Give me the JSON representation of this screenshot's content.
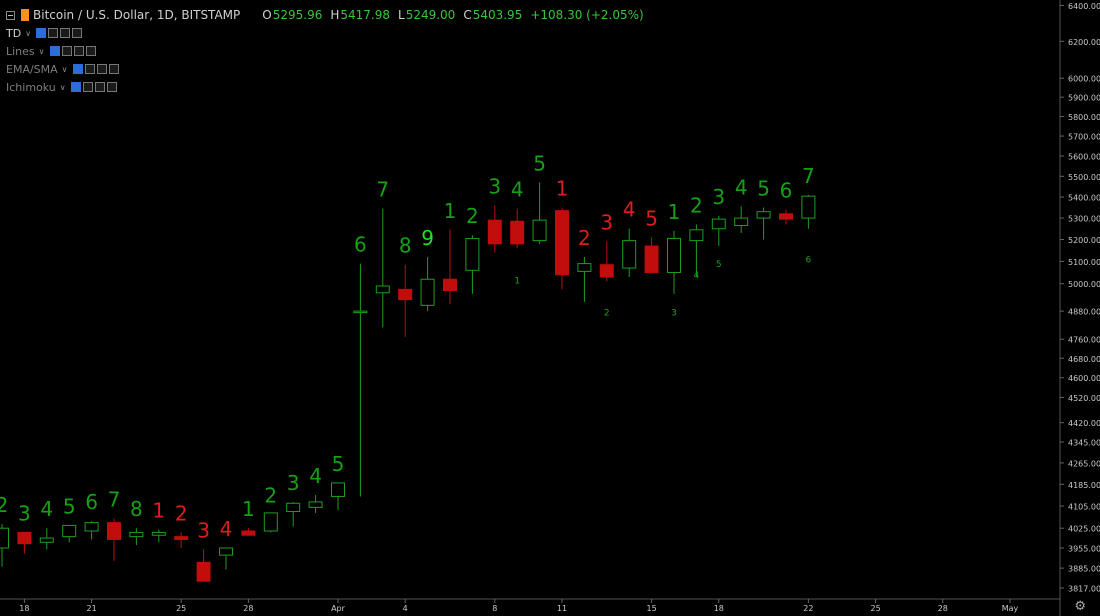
{
  "legend": {
    "symbol_title": "Bitcoin / U.S. Dollar, 1D, BITSTAMP",
    "open_label": "O",
    "open_value": "5295.96",
    "high_label": "H",
    "high_value": "5417.98",
    "low_label": "L",
    "low_value": "5249.00",
    "close_label": "C",
    "close_value": "5403.95",
    "change": "+108.30 (+2.05%)",
    "indicators": [
      {
        "label": "TD",
        "dim": false
      },
      {
        "label": "Lines",
        "dim": true
      },
      {
        "label": "EMA/SMA",
        "dim": true
      },
      {
        "label": "Ichimoku",
        "dim": true
      }
    ],
    "icons": [
      "collapse-icon",
      "bitcoin-icon",
      "eye-icon",
      "gear-icon",
      "source-icon",
      "close-icon",
      "chevron-down-icon"
    ]
  },
  "colors": {
    "background": "#000000",
    "up": "#1e9e1e",
    "down": "#c20d0d",
    "td_buy": "#16a016",
    "td_sell": "#e01c1c",
    "td_bright": "#22e022",
    "change_text": "#36c736"
  },
  "chart_data": {
    "type": "candlestick",
    "interval": "1D",
    "x": [
      "Mar 17",
      "Mar 18",
      "Mar 19",
      "Mar 20",
      "Mar 21",
      "Mar 22",
      "Mar 23",
      "Mar 24",
      "Mar 25",
      "Mar 26",
      "Mar 27",
      "Mar 28",
      "Mar 29",
      "Mar 30",
      "Mar 31",
      "Apr 1",
      "Apr 2",
      "Apr 3",
      "Apr 4",
      "Apr 5",
      "Apr 6",
      "Apr 7",
      "Apr 8",
      "Apr 9",
      "Apr 10",
      "Apr 11",
      "Apr 12",
      "Apr 13",
      "Apr 14",
      "Apr 15",
      "Apr 16",
      "Apr 17",
      "Apr 18",
      "Apr 19",
      "Apr 20",
      "Apr 21",
      "Apr 22"
    ],
    "open": [
      3955,
      4010,
      3975,
      3995,
      4015,
      4045,
      3995,
      4000,
      3995,
      3905,
      3930,
      4015,
      4015,
      4085,
      4100,
      4140,
      4880,
      4960,
      4975,
      4905,
      5020,
      5060,
      5290,
      5285,
      5195,
      5335,
      5055,
      5085,
      5070,
      5170,
      5050,
      5195,
      5250,
      5265,
      5300,
      5320,
      5300
    ],
    "high": [
      4040,
      4010,
      4025,
      4035,
      4050,
      4060,
      4025,
      4020,
      4010,
      3950,
      3955,
      4025,
      4075,
      4120,
      4145,
      4190,
      5090,
      5345,
      5085,
      5120,
      5245,
      5220,
      5360,
      5345,
      5470,
      5350,
      5120,
      5190,
      5250,
      5210,
      5240,
      5270,
      5310,
      5355,
      5350,
      5340,
      5410
    ],
    "low": [
      3890,
      3935,
      3950,
      3975,
      3985,
      3910,
      3965,
      3975,
      3955,
      3840,
      3880,
      4000,
      4010,
      4030,
      4080,
      4090,
      4140,
      4810,
      4770,
      4880,
      4910,
      4955,
      5140,
      5160,
      5180,
      4975,
      4920,
      5010,
      5030,
      5060,
      4955,
      5030,
      5170,
      5230,
      5200,
      5270,
      5250
    ],
    "close": [
      4025,
      3970,
      3990,
      4035,
      4045,
      3985,
      4010,
      4010,
      3985,
      3840,
      3955,
      4000,
      4080,
      4115,
      4120,
      4190,
      4880,
      4990,
      4930,
      5020,
      4970,
      5205,
      5180,
      5180,
      5290,
      5040,
      5090,
      5030,
      5195,
      5050,
      5205,
      5245,
      5295,
      5300,
      5330,
      5295,
      5403.95
    ],
    "td_labels": [
      {
        "x": "Mar 17",
        "text": "2",
        "type": "buy"
      },
      {
        "x": "Mar 18",
        "text": "3",
        "type": "buy"
      },
      {
        "x": "Mar 19",
        "text": "4",
        "type": "buy"
      },
      {
        "x": "Mar 20",
        "text": "5",
        "type": "buy"
      },
      {
        "x": "Mar 21",
        "text": "6",
        "type": "buy"
      },
      {
        "x": "Mar 22",
        "text": "7",
        "type": "buy"
      },
      {
        "x": "Mar 23",
        "text": "8",
        "type": "buy"
      },
      {
        "x": "Mar 24",
        "text": "1",
        "type": "sell"
      },
      {
        "x": "Mar 25",
        "text": "2",
        "type": "sell"
      },
      {
        "x": "Mar 26",
        "text": "3",
        "type": "sell"
      },
      {
        "x": "Mar 27",
        "text": "4",
        "type": "sell"
      },
      {
        "x": "Mar 28",
        "text": "1",
        "type": "buy"
      },
      {
        "x": "Mar 29",
        "text": "2",
        "type": "buy"
      },
      {
        "x": "Mar 30",
        "text": "3",
        "type": "buy"
      },
      {
        "x": "Mar 31",
        "text": "4",
        "type": "buy"
      },
      {
        "x": "Apr 1",
        "text": "5",
        "type": "buy"
      },
      {
        "x": "Apr 2",
        "text": "6",
        "type": "buy"
      },
      {
        "x": "Apr 3",
        "text": "7",
        "type": "buy"
      },
      {
        "x": "Apr 4",
        "text": "8",
        "type": "buy"
      },
      {
        "x": "Apr 5",
        "text": "9",
        "type": "buy_bright"
      },
      {
        "x": "Apr 6",
        "text": "1",
        "type": "buy"
      },
      {
        "x": "Apr 7",
        "text": "2",
        "type": "buy"
      },
      {
        "x": "Apr 8",
        "text": "3",
        "type": "buy"
      },
      {
        "x": "Apr 9",
        "text": "4",
        "type": "buy"
      },
      {
        "x": "Apr 10",
        "text": "5",
        "type": "buy"
      },
      {
        "x": "Apr 11",
        "text": "1",
        "type": "sell"
      },
      {
        "x": "Apr 12",
        "text": "2",
        "type": "sell"
      },
      {
        "x": "Apr 13",
        "text": "3",
        "type": "sell"
      },
      {
        "x": "Apr 14",
        "text": "4",
        "type": "sell"
      },
      {
        "x": "Apr 15",
        "text": "5",
        "type": "sell"
      },
      {
        "x": "Apr 16",
        "text": "1",
        "type": "buy"
      },
      {
        "x": "Apr 17",
        "text": "2",
        "type": "buy"
      },
      {
        "x": "Apr 18",
        "text": "3",
        "type": "buy"
      },
      {
        "x": "Apr 19",
        "text": "4",
        "type": "buy"
      },
      {
        "x": "Apr 20",
        "text": "5",
        "type": "buy"
      },
      {
        "x": "Apr 21",
        "text": "6",
        "type": "buy"
      },
      {
        "x": "Apr 22",
        "text": "7",
        "type": "buy"
      }
    ],
    "td_small_labels": [
      {
        "x": "Apr 9",
        "text": "1",
        "price": 5000
      },
      {
        "x": "Apr 13",
        "text": "2",
        "price": 4860
      },
      {
        "x": "Apr 16",
        "text": "3",
        "price": 4860
      },
      {
        "x": "Apr 17",
        "text": "4",
        "price": 5025
      },
      {
        "x": "Apr 18",
        "text": "5",
        "price": 5075
      },
      {
        "x": "Apr 22",
        "text": "6",
        "price": 5095
      }
    ],
    "x_ticks": [
      {
        "x": "Mar 18",
        "label": "18"
      },
      {
        "x": "Mar 21",
        "label": "21"
      },
      {
        "x": "Mar 25",
        "label": "25"
      },
      {
        "x": "Mar 28",
        "label": "28"
      },
      {
        "x": "Apr 1",
        "label": "Apr"
      },
      {
        "x": "Apr 4",
        "label": "4"
      },
      {
        "x": "Apr 8",
        "label": "8"
      },
      {
        "x": "Apr 11",
        "label": "11"
      },
      {
        "x": "Apr 15",
        "label": "15"
      },
      {
        "x": "Apr 18",
        "label": "18"
      },
      {
        "x": "Apr 22",
        "label": "22"
      },
      {
        "x": "Apr 25",
        "label": "25"
      },
      {
        "x": "Apr 28",
        "label": "28"
      },
      {
        "x": "May 1",
        "label": "May"
      }
    ],
    "y_ticks": [
      "6400.00",
      "6200.00",
      "6000.00",
      "5900.00",
      "5800.00",
      "5700.00",
      "5600.00",
      "5500.00",
      "5400.00",
      "5300.00",
      "5200.00",
      "5100.00",
      "5000.00",
      "4880.00",
      "4760.00",
      "4680.00",
      "4600.00",
      "4520.00",
      "4420.00",
      "4345.00",
      "4265.00",
      "4185.00",
      "4105.00",
      "4025.00",
      "3955.00",
      "3885.00",
      "3817.00"
    ],
    "y_scale": "log"
  }
}
